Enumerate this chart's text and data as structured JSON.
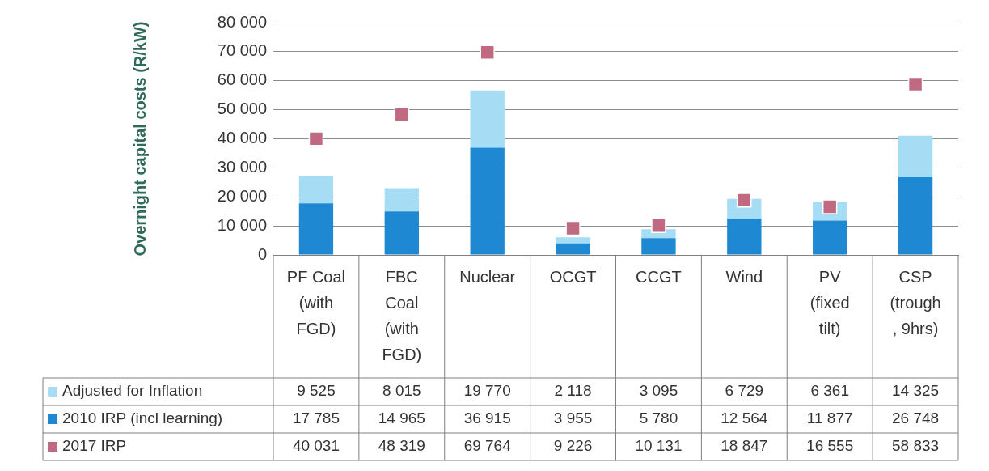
{
  "chart_data": {
    "type": "bar",
    "ylabel": "Overnight capital costs (R/kW)",
    "categories": [
      "PF Coal (with FGD)",
      "FBC Coal (with FGD)",
      "Nuclear",
      "OCGT",
      "CCGT",
      "Wind",
      "PV (fixed tilt)",
      "CSP (trough , 9hrs)"
    ],
    "stacked": true,
    "series": [
      {
        "name": "2010 IRP (incl learning)",
        "color": "#1e88d2",
        "values": [
          17785,
          14965,
          36915,
          3955,
          5780,
          12564,
          11877,
          26748
        ],
        "value_labels": [
          "17 785",
          "14 965",
          "36 915",
          "3 955",
          "5 780",
          "12 564",
          "11 877",
          "26 748"
        ]
      },
      {
        "name": "Adjusted for Inflation",
        "color": "#a6ddf5",
        "values": [
          9525,
          8015,
          19770,
          2118,
          3095,
          6729,
          6361,
          14325
        ],
        "value_labels": [
          "9 525",
          "8 015",
          "19 770",
          "2 118",
          "3 095",
          "6 729",
          "6 361",
          "14 325"
        ]
      },
      {
        "name": "2017 IRP",
        "type": "scatter",
        "marker": "square",
        "color": "#c06a82",
        "x": [
          "PF Coal (with FGD)",
          "FBC Coal (with FGD)",
          "Nuclear",
          "OCGT",
          "CCGT",
          "Wind",
          "PV (fixed tilt)",
          "CSP (trough , 9hrs)"
        ],
        "values": [
          40031,
          48319,
          69764,
          9226,
          10131,
          18847,
          16555,
          58833
        ],
        "value_labels": [
          "40 031",
          "48 319",
          "69 764",
          "9 226",
          "10 131",
          "18 847",
          "16 555",
          "58 833"
        ]
      }
    ],
    "ylim": [
      0,
      80000
    ],
    "yticks": [
      {
        "value": 0,
        "label": "0"
      },
      {
        "value": 10000,
        "label": "10 000"
      },
      {
        "value": 20000,
        "label": "20 000"
      },
      {
        "value": 30000,
        "label": "30 000"
      },
      {
        "value": 40000,
        "label": "40 000"
      },
      {
        "value": 50000,
        "label": "50 000"
      },
      {
        "value": 60000,
        "label": "60 000"
      },
      {
        "value": 70000,
        "label": "70 000"
      },
      {
        "value": 80000,
        "label": "80 000"
      }
    ],
    "grid": "y",
    "legend": "bottom left"
  }
}
